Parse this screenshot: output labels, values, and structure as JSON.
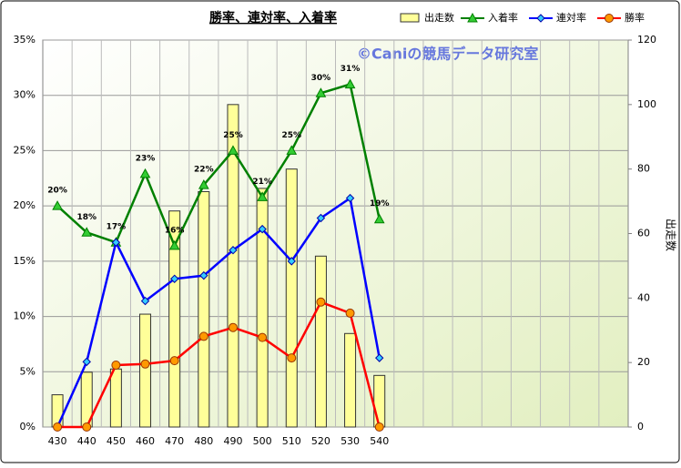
{
  "chart_data": {
    "type": "combo",
    "title": "勝率、連対率、入着率",
    "annotation": "©Caniの競馬データ研究室",
    "y2label": "出走数",
    "categories": [
      "430",
      "440",
      "450",
      "460",
      "470",
      "480",
      "490",
      "500",
      "510",
      "520",
      "530",
      "540",
      null,
      null,
      null,
      null,
      null,
      null,
      null,
      null
    ],
    "series": [
      {
        "name": "出走数",
        "type": "bar",
        "axis": "y2",
        "color": "#ffff99",
        "values": [
          10,
          17,
          18,
          35,
          67,
          73,
          100,
          74,
          80,
          53,
          29,
          16,
          null,
          null,
          null,
          null,
          null,
          null,
          null,
          null
        ]
      },
      {
        "name": "入着率",
        "type": "line",
        "marker": "triangle",
        "color": "#008000",
        "marker_color": "#33cc33",
        "values": [
          20,
          17.6,
          16.7,
          22.9,
          16.4,
          21.9,
          25,
          20.8,
          25,
          30.2,
          31,
          18.8,
          null,
          null,
          null,
          null,
          null,
          null,
          null,
          null
        ],
        "value_labels": [
          "20%",
          "18%",
          "17%",
          "23%",
          "16%",
          "22%",
          "25%",
          "21%",
          "25%",
          "30%",
          "31%",
          "19%",
          null,
          null,
          null,
          null,
          null,
          null,
          null,
          null
        ]
      },
      {
        "name": "連対率",
        "type": "line",
        "marker": "diamond",
        "color": "#0000ff",
        "marker_color": "#33ccff",
        "values": [
          0,
          5.9,
          16.7,
          11.4,
          13.4,
          13.7,
          16,
          17.9,
          15,
          18.9,
          20.7,
          6.25,
          null,
          null,
          null,
          null,
          null,
          null,
          null,
          null
        ]
      },
      {
        "name": "勝率",
        "type": "line",
        "marker": "circle",
        "color": "#ff0000",
        "marker_color": "#ff9900",
        "values": [
          0,
          0,
          5.6,
          5.7,
          6,
          8.2,
          9,
          8.1,
          6.25,
          11.3,
          10.3,
          0,
          null,
          null,
          null,
          null,
          null,
          null,
          null,
          null
        ]
      }
    ],
    "ylim": [
      0,
      35
    ],
    "yticks": [
      {
        "value": 0,
        "label": "0%"
      },
      {
        "value": 5,
        "label": "5%"
      },
      {
        "value": 10,
        "label": "10%"
      },
      {
        "value": 15,
        "label": "15%"
      },
      {
        "value": 20,
        "label": "20%"
      },
      {
        "value": 25,
        "label": "25%"
      },
      {
        "value": 30,
        "label": "30%"
      },
      {
        "value": 35,
        "label": "35%"
      }
    ],
    "y2lim": [
      0,
      120
    ],
    "y2ticks": [
      0,
      20,
      40,
      60,
      80,
      100,
      120
    ],
    "grid": true
  }
}
